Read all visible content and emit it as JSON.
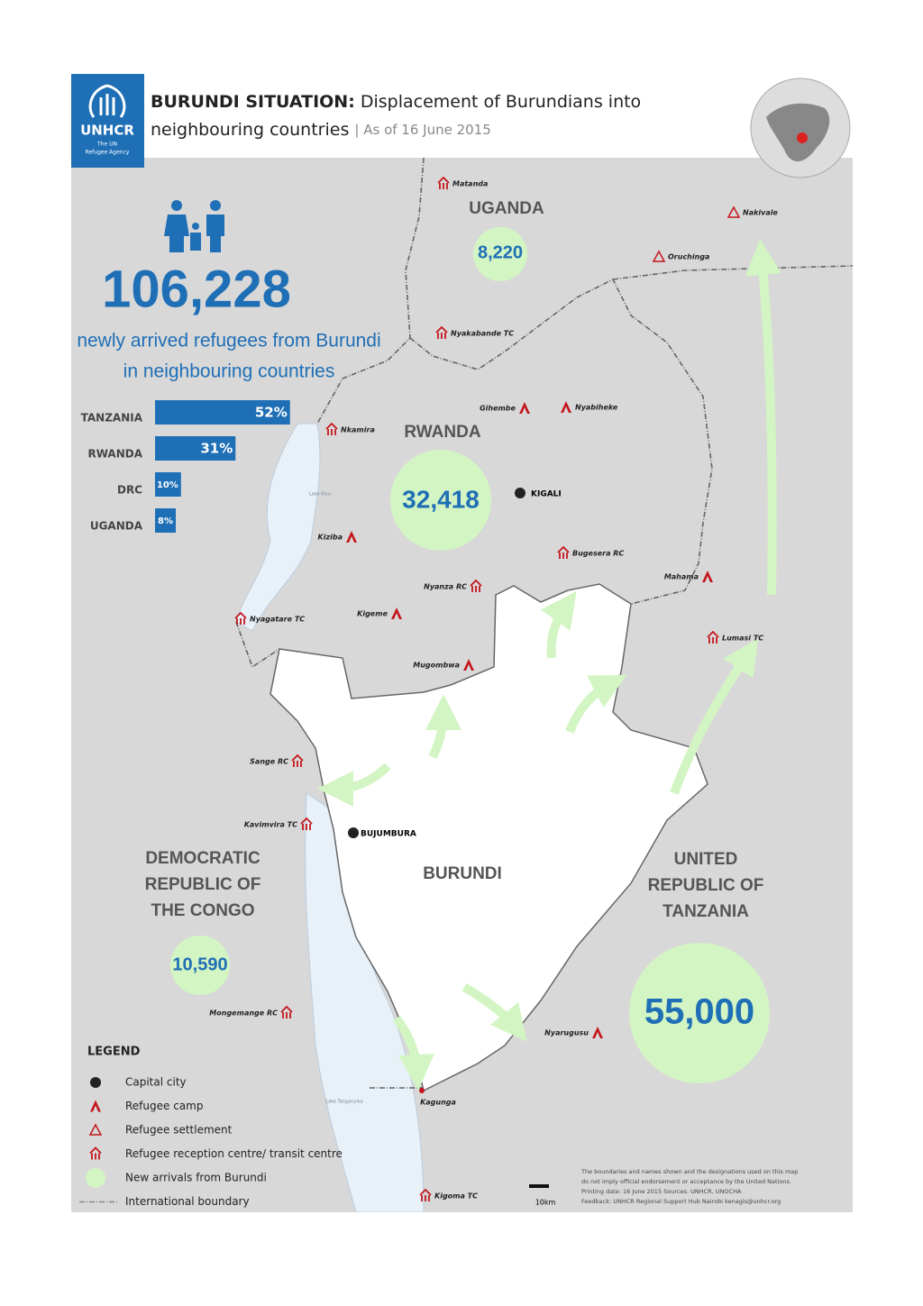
{
  "header": {
    "org": "UNHCR",
    "org_sub_1": "The UN",
    "org_sub_2": "Refugee Agency",
    "title_bold": "BURUNDI SITUATION:",
    "title_1": "Displacement of Burundians into",
    "title_2": "neighbouring countries",
    "date": "| As of 16 June 2015"
  },
  "total": {
    "value": "106,228",
    "caption_1": "newly arrived refugees from Burundi",
    "caption_2": "in neighbouring countries"
  },
  "share": {
    "categories": [
      "TANZANIA",
      "RWANDA",
      "DRC",
      "UGANDA"
    ],
    "values": [
      52,
      31,
      10,
      8
    ],
    "value_labels": [
      "52%",
      "31%",
      "10%",
      "8%"
    ],
    "color": "#1f6fb6"
  },
  "countries": [
    {
      "name": "UGANDA",
      "arrivals": "8,220"
    },
    {
      "name": "RWANDA",
      "arrivals": "32,418"
    },
    {
      "name_1": "DEMOCRATIC",
      "name_2": "REPUBLIC OF",
      "name_3": "THE CONGO",
      "arrivals": "10,590"
    },
    {
      "name_1": "UNITED",
      "name_2": "REPUBLIC OF",
      "name_3": "TANZANIA",
      "arrivals": "55,000"
    },
    {
      "name": "BURUNDI"
    }
  ],
  "capitals": [
    "KIGALI",
    "BUJUMBURA"
  ],
  "lakes": [
    "Lake Kivu",
    "Lake Tanganyika"
  ],
  "sites": [
    {
      "name": "Matanda",
      "kind": "reception"
    },
    {
      "name": "Nakivale",
      "kind": "settlement"
    },
    {
      "name": "Oruchinga",
      "kind": "settlement"
    },
    {
      "name": "Nyakabande TC",
      "kind": "reception"
    },
    {
      "name": "Gihembe",
      "kind": "camp"
    },
    {
      "name": "Nyabiheke",
      "kind": "camp"
    },
    {
      "name": "Nkamira",
      "kind": "reception"
    },
    {
      "name": "Kiziba",
      "kind": "camp"
    },
    {
      "name": "Bugesera RC",
      "kind": "reception"
    },
    {
      "name": "Mahama",
      "kind": "camp"
    },
    {
      "name": "Nyanza RC",
      "kind": "reception"
    },
    {
      "name": "Kigeme",
      "kind": "camp"
    },
    {
      "name": "Nyagatare TC",
      "kind": "reception"
    },
    {
      "name": "Lumasi TC",
      "kind": "reception"
    },
    {
      "name": "Mugombwa",
      "kind": "camp"
    },
    {
      "name": "Sange RC",
      "kind": "reception"
    },
    {
      "name": "Kavimvira TC",
      "kind": "reception"
    },
    {
      "name": "Mongemange RC",
      "kind": "reception"
    },
    {
      "name": "Nyarugusu",
      "kind": "camp"
    },
    {
      "name": "Kagunga",
      "kind": "point"
    },
    {
      "name": "Kigoma TC",
      "kind": "reception"
    }
  ],
  "legend": {
    "title": "LEGEND",
    "items": [
      "Capital city",
      "Refugee camp",
      "Refugee settlement",
      "Refugee reception centre/ transit centre",
      "New arrivals from Burundi",
      "International boundary"
    ]
  },
  "scale": "10km",
  "footer": [
    "The boundaries and names shown and the designations used on this map",
    "do not imply official endorsement or acceptance by the United Nations.",
    "Printing date: 16 June 2015  Sources: UNHCR, UNOCHA",
    "Feedback: UNHCR Regional Support Hub Nairobi  kenagis@unhcr.org"
  ]
}
